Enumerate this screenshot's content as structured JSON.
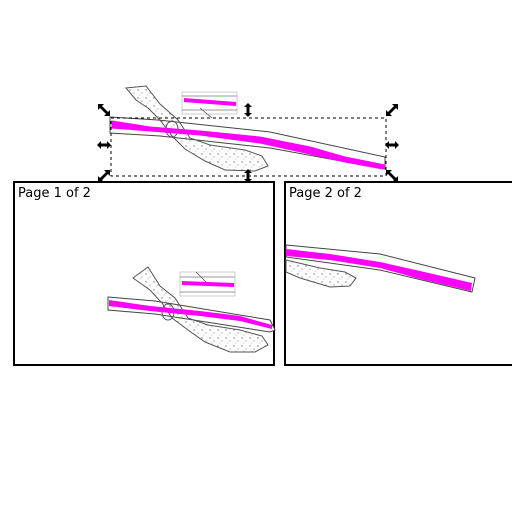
{
  "canvas": {
    "background": "#ffffff",
    "river_color": "#ff00ff",
    "outline_color": "#444444"
  },
  "pages": [
    {
      "label": "Page 1 of 2"
    },
    {
      "label": "Page 2 of 2"
    }
  ],
  "selection": {
    "handles": [
      "resize-nw-icon",
      "resize-n-icon",
      "resize-ne-icon",
      "resize-w-icon",
      "resize-e-icon",
      "resize-sw-icon",
      "resize-s-icon",
      "resize-se-icon"
    ]
  }
}
